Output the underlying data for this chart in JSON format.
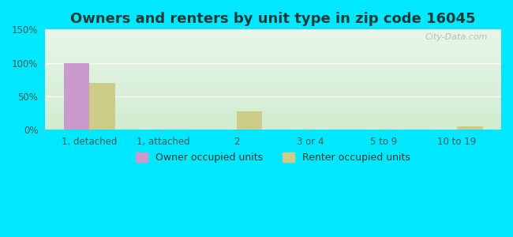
{
  "title": "Owners and renters by unit type in zip code 16045",
  "categories": [
    "1, detached",
    "1, attached",
    "2",
    "3 or 4",
    "5 to 9",
    "10 to 19"
  ],
  "owner_values": [
    100,
    0,
    0,
    0,
    0,
    0
  ],
  "renter_values": [
    70,
    0,
    28,
    0,
    0,
    5
  ],
  "owner_color": "#cc99cc",
  "renter_color": "#cccc88",
  "ylim": [
    0,
    150
  ],
  "yticks": [
    0,
    50,
    100,
    150
  ],
  "ytick_labels": [
    "0%",
    "50%",
    "100%",
    "150%"
  ],
  "background_outer": "#00e8ff",
  "background_inner_top": "#e8f5e8",
  "background_inner_bottom": "#d0ecd0",
  "bar_width": 0.35,
  "legend_owner": "Owner occupied units",
  "legend_renter": "Renter occupied units",
  "watermark": "City-Data.com",
  "title_fontsize": 13,
  "tick_fontsize": 8.5,
  "legend_fontsize": 9
}
